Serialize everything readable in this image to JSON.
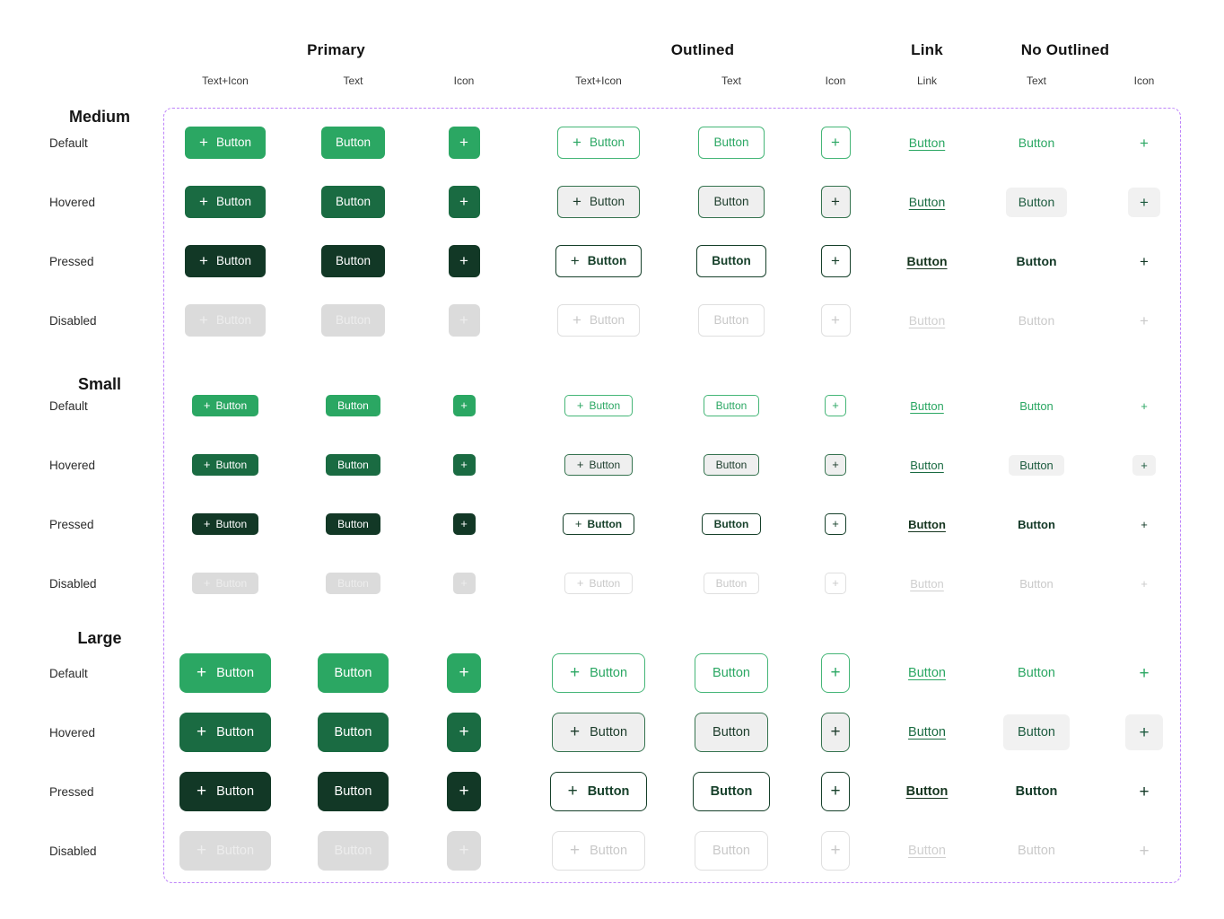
{
  "button": {
    "label": "Button",
    "plus": "+"
  },
  "columns": {
    "groups": [
      {
        "label": "Primary",
        "variant": "primary",
        "cols": [
          {
            "label": "Text+Icon",
            "kind": "ti"
          },
          {
            "label": "Text",
            "kind": "text"
          },
          {
            "label": "Icon",
            "kind": "icon"
          }
        ]
      },
      {
        "label": "Outlined",
        "variant": "outlined",
        "cols": [
          {
            "label": "Text+Icon",
            "kind": "ti"
          },
          {
            "label": "Text",
            "kind": "text"
          },
          {
            "label": "Icon",
            "kind": "icon"
          }
        ]
      },
      {
        "label": "Link",
        "variant": "link",
        "cols": [
          {
            "label": "Link",
            "kind": "text"
          }
        ]
      },
      {
        "label": "No Outlined",
        "variant": "ghost",
        "cols": [
          {
            "label": "Text",
            "kind": "text"
          },
          {
            "label": "Icon",
            "kind": "icon"
          }
        ]
      }
    ]
  },
  "rows": {
    "sizes": [
      {
        "label": "Medium",
        "key": "medium",
        "states": [
          {
            "label": "Default",
            "key": "default"
          },
          {
            "label": "Hovered",
            "key": "hovered"
          },
          {
            "label": "Pressed",
            "key": "pressed"
          },
          {
            "label": "Disabled",
            "key": "disabled"
          }
        ]
      },
      {
        "label": "Small",
        "key": "small",
        "states": [
          {
            "label": "Default",
            "key": "default"
          },
          {
            "label": "Hovered",
            "key": "hovered"
          },
          {
            "label": "Pressed",
            "key": "pressed"
          },
          {
            "label": "Disabled",
            "key": "disabled"
          }
        ]
      },
      {
        "label": "Large",
        "key": "large",
        "states": [
          {
            "label": "Default",
            "key": "default"
          },
          {
            "label": "Hovered",
            "key": "hovered"
          },
          {
            "label": "Pressed",
            "key": "pressed"
          },
          {
            "label": "Disabled",
            "key": "disabled"
          }
        ]
      }
    ]
  },
  "palette": {
    "primary_default": "#2BA763",
    "primary_hovered": "#1A6B42",
    "primary_pressed": "#123826",
    "outlined_border_default": "#45B677",
    "hover_background": "#EFEFEF",
    "disabled_background": "#DBDBDB",
    "disabled_text": "#C9C9C9",
    "dashed_border": "#BE84FA",
    "background": "#FFFFFF"
  }
}
